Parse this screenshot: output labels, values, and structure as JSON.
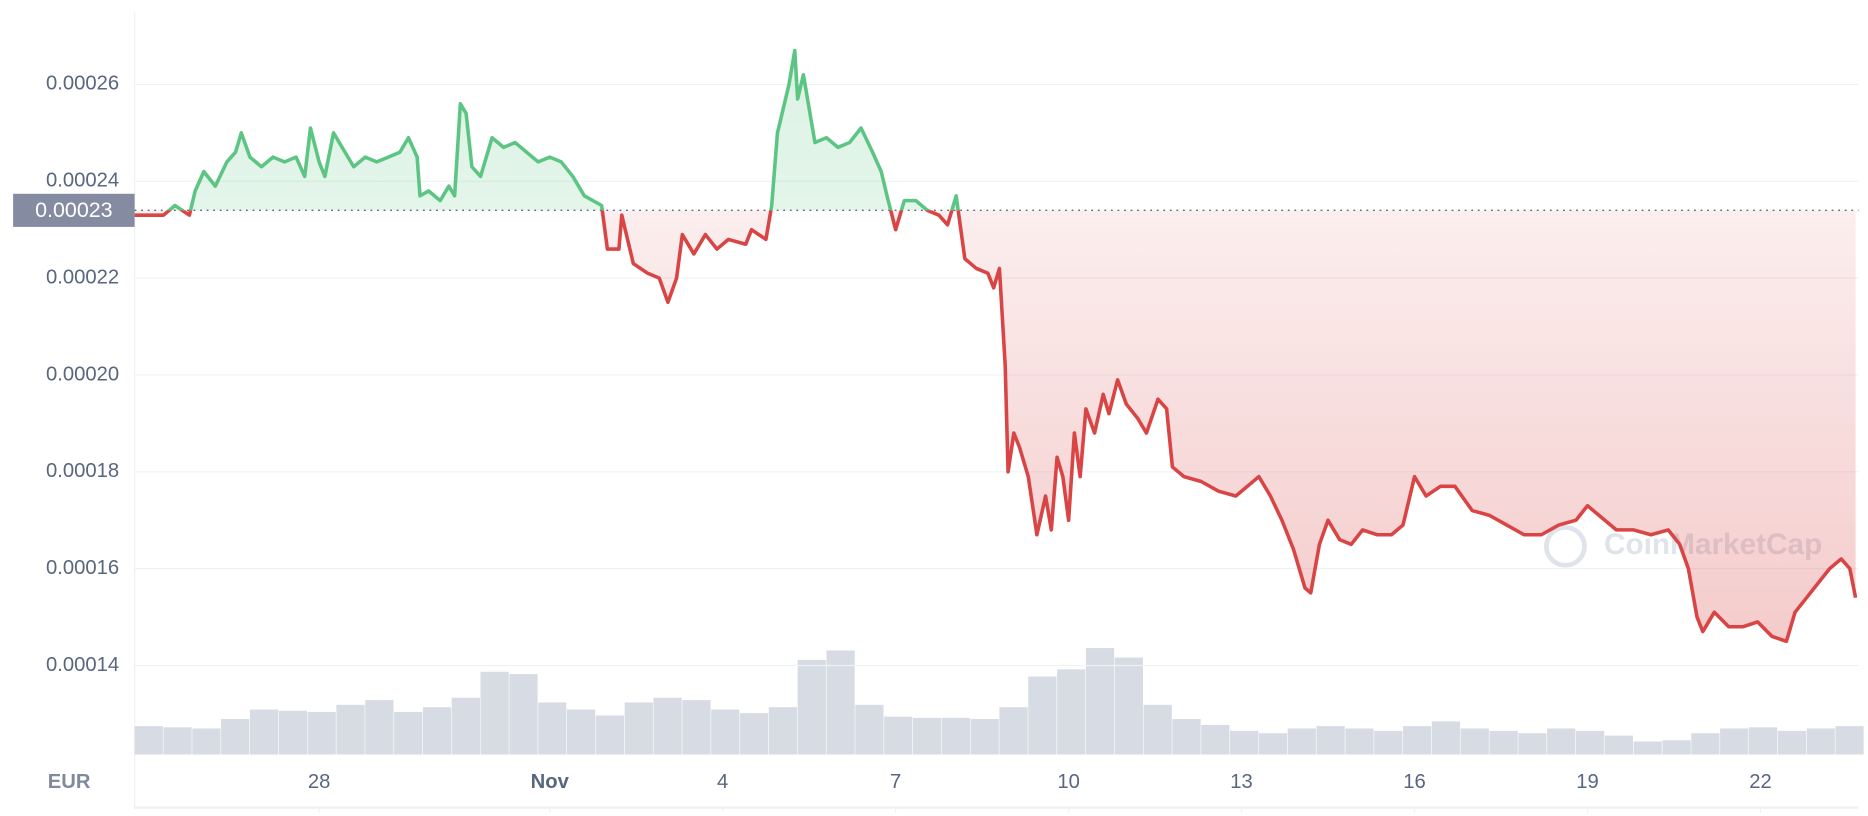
{
  "chart_data": {
    "type": "line",
    "x": [
      24.8,
      25.3,
      25.5,
      25.75,
      25.85,
      26.0,
      26.2,
      26.4,
      26.55,
      26.65,
      26.8,
      27.0,
      27.2,
      27.4,
      27.6,
      27.75,
      27.85,
      28.0,
      28.1,
      28.25,
      28.45,
      28.6,
      28.8,
      29.0,
      29.2,
      29.4,
      29.55,
      29.7,
      29.75,
      29.9,
      30.1,
      30.25,
      30.35,
      30.45,
      30.55,
      30.65,
      30.8,
      31.0,
      31.2,
      31.4,
      31.6,
      31.8,
      32.0,
      32.2,
      32.4,
      32.6,
      32.9,
      33.0,
      33.2,
      33.25,
      33.45,
      33.7,
      33.9,
      34.05,
      34.2,
      34.3,
      34.5,
      34.7,
      34.9,
      35.1,
      35.4,
      35.5,
      35.75,
      35.85,
      35.95,
      36.05,
      36.15,
      36.25,
      36.3,
      36.4,
      36.6,
      36.8,
      37.0,
      37.2,
      37.4,
      37.6,
      37.75,
      37.85,
      38.0,
      38.15,
      38.35,
      38.55,
      38.75,
      38.9,
      39.05,
      39.2,
      39.4,
      39.6,
      39.7,
      39.8,
      39.9,
      39.95,
      40.05,
      40.15,
      40.3,
      40.45,
      40.6,
      40.7,
      40.8,
      40.9,
      41.0,
      41.1,
      41.2,
      41.3,
      41.45,
      41.6,
      41.7,
      41.85,
      42.0,
      42.2,
      42.35,
      42.55,
      42.7,
      42.8,
      43.0,
      43.3,
      43.6,
      43.9,
      44.1,
      44.3,
      44.5,
      44.7,
      44.9,
      45.1,
      45.2,
      45.35,
      45.5,
      45.7,
      45.9,
      46.1,
      46.35,
      46.6,
      46.8,
      47.0,
      47.2,
      47.45,
      47.7,
      48.0,
      48.3,
      48.6,
      48.9,
      49.2,
      49.5,
      49.8,
      50.0,
      50.2,
      50.5,
      50.8,
      51.1,
      51.4,
      51.6,
      51.75,
      51.9,
      52.0,
      52.2,
      52.45,
      52.7,
      52.95,
      53.2,
      53.45,
      53.6,
      53.8,
      54.0,
      54.2,
      54.4,
      54.55,
      54.65
    ],
    "values": [
      0.000233,
      0.000233,
      0.000235,
      0.000233,
      0.000238,
      0.000242,
      0.000239,
      0.000244,
      0.000246,
      0.00025,
      0.000245,
      0.000243,
      0.000245,
      0.000244,
      0.000245,
      0.000241,
      0.000251,
      0.000244,
      0.000241,
      0.00025,
      0.000246,
      0.000243,
      0.000245,
      0.000244,
      0.000245,
      0.000246,
      0.000249,
      0.000245,
      0.000237,
      0.000238,
      0.000236,
      0.000239,
      0.000237,
      0.000256,
      0.000254,
      0.000243,
      0.000241,
      0.000249,
      0.000247,
      0.000248,
      0.000246,
      0.000244,
      0.000245,
      0.000244,
      0.000241,
      0.000237,
      0.000235,
      0.000226,
      0.000226,
      0.000233,
      0.000223,
      0.000221,
      0.00022,
      0.000215,
      0.00022,
      0.000229,
      0.000225,
      0.000229,
      0.000226,
      0.000228,
      0.000227,
      0.00023,
      0.000228,
      0.000235,
      0.00025,
      0.000255,
      0.00026,
      0.000267,
      0.000257,
      0.000262,
      0.000248,
      0.000249,
      0.000247,
      0.000248,
      0.000251,
      0.000246,
      0.000242,
      0.000237,
      0.00023,
      0.000236,
      0.000236,
      0.000234,
      0.000233,
      0.000231,
      0.000237,
      0.000224,
      0.000222,
      0.000221,
      0.000218,
      0.000222,
      0.000202,
      0.00018,
      0.000188,
      0.000185,
      0.000179,
      0.000167,
      0.000175,
      0.000168,
      0.000183,
      0.000179,
      0.00017,
      0.000188,
      0.000179,
      0.000193,
      0.000188,
      0.000196,
      0.000192,
      0.000199,
      0.000194,
      0.000191,
      0.000188,
      0.000195,
      0.000193,
      0.000181,
      0.000179,
      0.000178,
      0.000176,
      0.000175,
      0.000177,
      0.000179,
      0.000175,
      0.00017,
      0.000164,
      0.000156,
      0.000155,
      0.000165,
      0.00017,
      0.000166,
      0.000165,
      0.000168,
      0.000167,
      0.000167,
      0.000169,
      0.000179,
      0.000175,
      0.000177,
      0.000177,
      0.000172,
      0.000171,
      0.000169,
      0.000167,
      0.000167,
      0.000169,
      0.00017,
      0.000173,
      0.000171,
      0.000168,
      0.000168,
      0.000167,
      0.000168,
      0.000165,
      0.00016,
      0.00015,
      0.000147,
      0.000151,
      0.000148,
      0.000148,
      0.000149,
      0.000146,
      0.000145,
      0.000151,
      0.000154,
      0.000157,
      0.00016,
      0.000162,
      0.00016,
      0.000154
    ],
    "up_color": "#5dc584",
    "down_color": "#d94545",
    "reference": {
      "value": 0.000234,
      "label": "0.00023"
    },
    "xlim": [
      24.8,
      54.7
    ],
    "ylim": [
      0.00012,
      0.000275
    ],
    "yticks": [
      0.00014,
      0.00016,
      0.00018,
      {
        "value": 0.0002,
        "label": "0.00020"
      },
      0.00022,
      0.00024,
      0.00026
    ],
    "xticks": [
      28,
      {
        "value": 32,
        "label": "Nov"
      },
      {
        "value": 35,
        "label": "4"
      },
      {
        "value": 38,
        "label": "7"
      },
      {
        "value": 41,
        "label": "10"
      },
      {
        "value": 44,
        "label": "13"
      },
      {
        "value": 47,
        "label": "16"
      },
      {
        "value": 50,
        "label": "19"
      },
      {
        "value": 53,
        "label": "22"
      }
    ],
    "grid": true,
    "currency": "EUR",
    "watermark": "CoinMarketCap",
    "volume": {
      "color": "#d7dbe3",
      "ylim": [
        0,
        100
      ],
      "x": [
        24.8,
        25.3,
        25.8,
        26.3,
        26.8,
        27.3,
        27.8,
        28.3,
        28.8,
        29.3,
        29.8,
        30.3,
        30.8,
        31.3,
        31.8,
        32.3,
        32.8,
        33.3,
        33.8,
        34.3,
        34.8,
        35.3,
        35.8,
        36.3,
        36.8,
        37.3,
        37.8,
        38.3,
        38.8,
        39.3,
        39.8,
        40.3,
        40.8,
        41.3,
        41.8,
        42.3,
        42.8,
        43.3,
        43.8,
        44.3,
        44.8,
        45.3,
        45.8,
        46.3,
        46.8,
        47.3,
        47.8,
        48.3,
        48.8,
        49.3,
        49.8,
        50.3,
        50.8,
        51.3,
        51.8,
        52.3,
        52.8,
        53.3,
        53.8,
        54.3
      ],
      "values": [
        24,
        23,
        22,
        30,
        38,
        37,
        36,
        42,
        46,
        36,
        40,
        48,
        70,
        68,
        44,
        38,
        33,
        44,
        48,
        46,
        38,
        35,
        40,
        80,
        88,
        42,
        32,
        31,
        31,
        30,
        40,
        66,
        72,
        90,
        82,
        42,
        30,
        25,
        20,
        18,
        22,
        24,
        22,
        20,
        24,
        28,
        22,
        20,
        18,
        22,
        20,
        16,
        11,
        12,
        18,
        22,
        23,
        20,
        22,
        24
      ]
    }
  }
}
